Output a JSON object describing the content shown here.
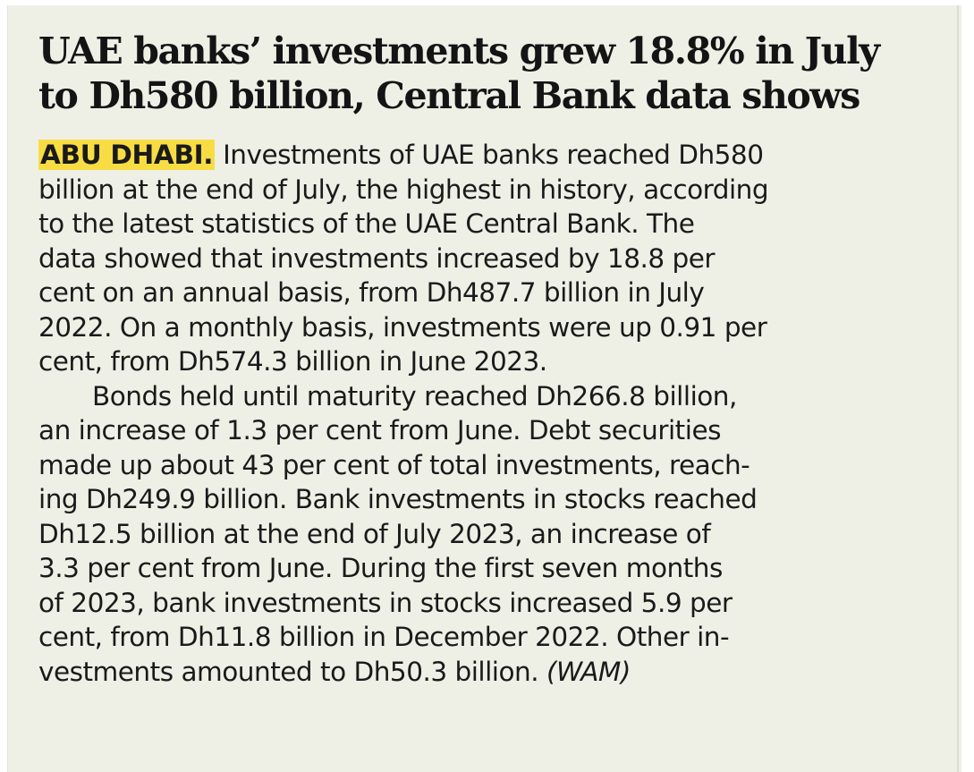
{
  "article": {
    "headline_lines": [
      "UAE banks’ investments grew 18.8% in July",
      "to Dh580 billion, Central Bank data shows"
    ],
    "dateline": "ABU DHABI.",
    "first_line_rest": " Investments of UAE banks reached Dh580",
    "paragraph1_lines": [
      "billion at the end of July, the highest in history, according",
      "to the latest statistics of the UAE Central Bank. The",
      "data showed that investments increased by 18.8 per",
      "cent on an annual basis, from Dh487.7 billion in July",
      "2022. On a monthly basis, investments were up 0.91 per",
      "cent, from Dh574.3 billion in June 2023."
    ],
    "paragraph2_lines": [
      "Bonds held until maturity reached Dh266.8 billion,",
      "an increase of 1.3 per cent from June. Debt securities",
      "made up about 43 per cent of total investments, reach-",
      "ing Dh249.9 billion. Bank investments in stocks reached",
      "Dh12.5 billion at the end of July 2023, an increase of",
      "3.3 per cent from June. During the first seven months",
      "of 2023, bank investments in stocks increased 5.9 per",
      "cent, from Dh11.8 billion in December 2022. Other in-"
    ],
    "last_line_text": "vestments amounted to Dh50.3 billion. ",
    "source_credit": "(WAM)"
  }
}
